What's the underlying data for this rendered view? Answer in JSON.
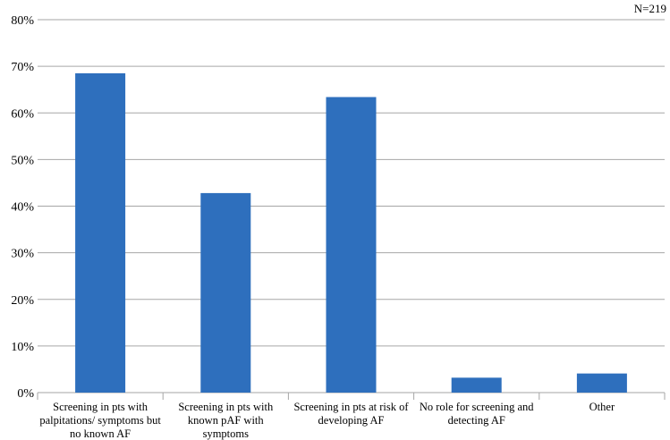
{
  "chart_data": {
    "type": "bar",
    "annotation": "N=219",
    "categories": [
      [
        "Screening in pts with",
        "palpitations/ symptoms but",
        "no known AF"
      ],
      [
        "Screening in pts with",
        "known pAF with",
        "symptoms"
      ],
      [
        "Screening in pts at risk of",
        "developing AF"
      ],
      [
        "No role for screening and",
        "detecting AF"
      ],
      [
        "Other"
      ]
    ],
    "values": [
      68.5,
      42.8,
      63.4,
      3.2,
      4.1
    ],
    "y_ticks": [
      "0%",
      "10%",
      "20%",
      "30%",
      "40%",
      "50%",
      "60%",
      "70%",
      "80%"
    ],
    "ylim": [
      0,
      80
    ],
    "grid": true,
    "bar_color": "#2e6fbd",
    "gridline_color": "#a6a6a6"
  }
}
